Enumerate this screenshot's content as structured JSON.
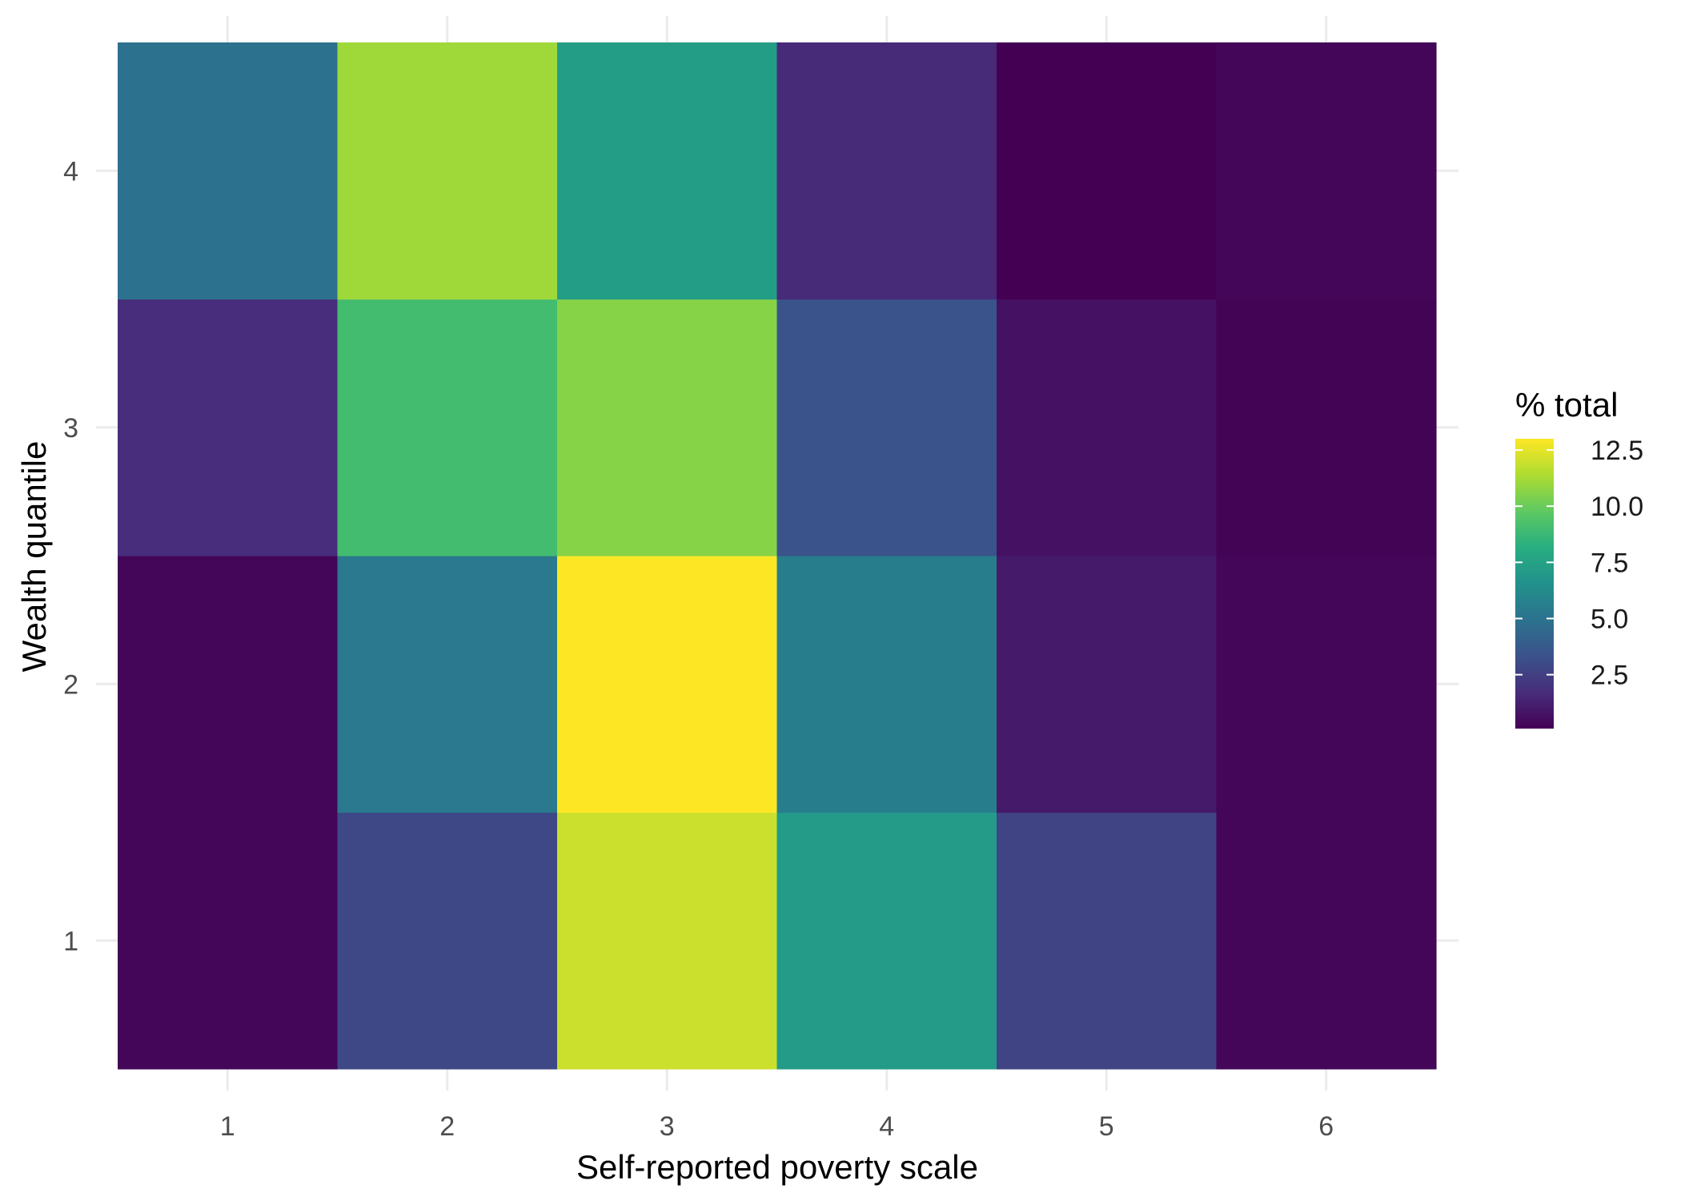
{
  "chart_data": {
    "type": "heatmap",
    "title": "",
    "xlabel": "Self-reported poverty scale",
    "ylabel": "Wealth quantile",
    "x": [
      1,
      2,
      3,
      4,
      5,
      6
    ],
    "y": [
      1,
      2,
      3,
      4
    ],
    "x_tick_labels": [
      "1",
      "2",
      "3",
      "4",
      "5",
      "6"
    ],
    "y_tick_labels": [
      "1",
      "2",
      "3",
      "4"
    ],
    "values": [
      [
        0.3,
        2.9,
        12.0,
        7.1,
        2.7,
        0.3
      ],
      [
        0.3,
        5.3,
        13.0,
        5.5,
        1.0,
        0.3
      ],
      [
        1.7,
        9.0,
        10.6,
        3.4,
        0.7,
        0.2
      ],
      [
        4.9,
        11.1,
        7.2,
        1.6,
        0.1,
        0.3
      ]
    ],
    "color_scale": "viridis",
    "color_range": [
      0.1,
      13.0
    ],
    "grid": true,
    "legend": {
      "title": "% total",
      "placement": "right",
      "ticks": [
        2.5,
        5.0,
        7.5,
        10.0,
        12.5
      ],
      "tick_labels": [
        "2.5",
        "5.0",
        "7.5",
        "10.0",
        "12.5"
      ]
    }
  }
}
